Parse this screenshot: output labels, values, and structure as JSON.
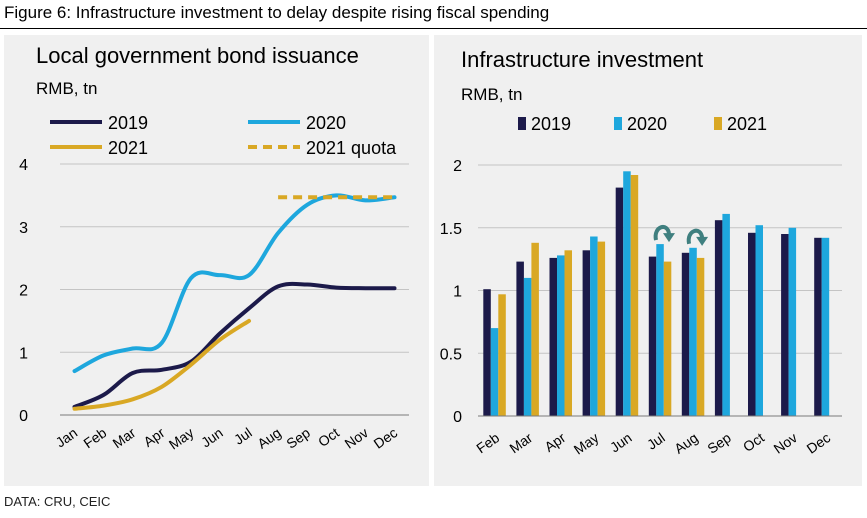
{
  "figure_title": "Figure 6: Infrastructure investment to delay despite rising fiscal spending",
  "source": "DATA: CRU, CEIC",
  "colors": {
    "c2019": "#1c1a4a",
    "c2020": "#1ea7dd",
    "c2021": "#d9a824",
    "panel_bg": "#f0f0f0",
    "grid": "#c4c4c4",
    "arrow": "#3f7f7f"
  },
  "chart_data": [
    {
      "type": "line",
      "title": "Local government bond issuance",
      "ylabel": "RMB, tn",
      "ylim": [
        0,
        4
      ],
      "yticks": [
        "0",
        "1",
        "2",
        "3",
        "4"
      ],
      "categories": [
        "Jan",
        "Feb",
        "Mar",
        "Apr",
        "May",
        "Jun",
        "Jul",
        "Aug",
        "Sep",
        "Oct",
        "Nov",
        "Dec"
      ],
      "grid": true,
      "legend": "top",
      "series": [
        {
          "name": "2019",
          "color": "#1c1a4a",
          "values": [
            0.13,
            0.32,
            0.67,
            0.72,
            0.85,
            1.3,
            1.7,
            2.05,
            2.08,
            2.03,
            2.02,
            2.02
          ]
        },
        {
          "name": "2020",
          "color": "#1ea7dd",
          "values": [
            0.7,
            0.95,
            1.06,
            1.15,
            2.18,
            2.23,
            2.23,
            2.9,
            3.35,
            3.5,
            3.42,
            3.47
          ]
        },
        {
          "name": "2021",
          "color": "#d9a824",
          "values": [
            0.1,
            0.15,
            0.25,
            0.45,
            0.8,
            1.2,
            1.5,
            null,
            null,
            null,
            null,
            null
          ]
        },
        {
          "name": "2021 quota",
          "color": "#d9a824",
          "dashed": true,
          "values": [
            null,
            null,
            null,
            null,
            null,
            null,
            null,
            3.47,
            3.47,
            3.47,
            3.47,
            3.47
          ]
        }
      ]
    },
    {
      "type": "bar",
      "title": "Infrastructure investment",
      "ylabel": "RMB, tn",
      "ylim": [
        0,
        2
      ],
      "yticks": [
        "0",
        "0.5",
        "1",
        "1.5",
        "2"
      ],
      "categories": [
        "Feb",
        "Mar",
        "Apr",
        "May",
        "Jun",
        "Jul",
        "Aug",
        "Sep",
        "Oct",
        "Nov",
        "Dec"
      ],
      "grid": true,
      "legend": "top",
      "series": [
        {
          "name": "2019",
          "color": "#1c1a4a",
          "values": [
            1.01,
            1.23,
            1.26,
            1.32,
            1.82,
            1.27,
            1.3,
            1.56,
            1.46,
            1.45,
            1.42
          ]
        },
        {
          "name": "2020",
          "color": "#1ea7dd",
          "values": [
            0.7,
            1.1,
            1.28,
            1.43,
            1.95,
            1.37,
            1.34,
            1.61,
            1.52,
            1.5,
            1.42
          ]
        },
        {
          "name": "2021",
          "color": "#d9a824",
          "values": [
            0.97,
            1.38,
            1.32,
            1.39,
            1.92,
            1.23,
            1.26,
            null,
            null,
            null,
            null
          ]
        }
      ],
      "annotations": [
        {
          "type": "down-arrow",
          "category": "Jul"
        },
        {
          "type": "down-arrow",
          "category": "Aug"
        }
      ]
    }
  ]
}
